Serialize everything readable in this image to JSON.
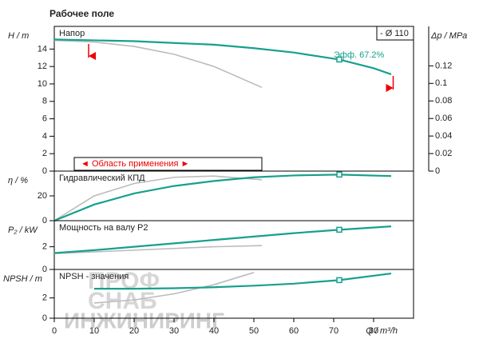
{
  "title": "Рабочее поле",
  "watermark": [
    "ПРОФ",
    "СНАБ",
    "ИНЖИНИРИНГ"
  ],
  "x_label": "Q / m³/h",
  "duty_point": 71.4,
  "chart_data": [
    {
      "type": "line",
      "ylabel": "H / m",
      "panel_title": "Напор",
      "y2label": "Δp / MPa",
      "diameter_label": "- Ø 110",
      "efficiency_label": "Эфф.  67.2%",
      "range_label": "◄ Область применения ►",
      "application_range": [
        9,
        84.5
      ],
      "xlim": [
        0,
        90
      ],
      "ylim": [
        0,
        16.6
      ],
      "yticks": [
        0,
        2,
        4,
        6,
        8,
        10,
        12,
        14
      ],
      "y2lim": [
        0,
        0.165
      ],
      "y2ticks": [
        0,
        0.02,
        0.04,
        0.06,
        0.08,
        0.1,
        0.12
      ],
      "series": [
        {
          "color": "#bbbbbb",
          "x": [
            0,
            10,
            20,
            30,
            40,
            52
          ],
          "values": [
            15.0,
            14.8,
            14.3,
            13.4,
            12.0,
            9.6
          ]
        },
        {
          "color": "#17a08c",
          "x": [
            0,
            10,
            20,
            30,
            40,
            50,
            60,
            71.4,
            80,
            84.4
          ],
          "values": [
            15.1,
            15.0,
            14.9,
            14.7,
            14.5,
            14.1,
            13.6,
            12.8,
            11.8,
            11.1
          ]
        }
      ]
    },
    {
      "type": "line",
      "ylabel": "η / %",
      "panel_title": "Гидравлический КПД",
      "xlim": [
        0,
        90
      ],
      "ylim": [
        0,
        40
      ],
      "yticks": [
        0,
        20
      ],
      "series": [
        {
          "color": "#bbbbbb",
          "x": [
            0,
            10,
            20,
            30,
            40,
            52
          ],
          "values": [
            0,
            20,
            30,
            35,
            36,
            33
          ]
        },
        {
          "color": "#17a08c",
          "x": [
            0,
            10,
            20,
            30,
            40,
            50,
            60,
            71.4,
            84.4
          ],
          "values": [
            0,
            13,
            22,
            28,
            32,
            35,
            36.5,
            37.2,
            36
          ]
        }
      ]
    },
    {
      "type": "line",
      "ylabel": "P₂ / kW",
      "panel_title": "Мощность на валу P2",
      "xlim": [
        0,
        90
      ],
      "ylim": [
        0,
        4.3
      ],
      "yticks": [
        0,
        2
      ],
      "series": [
        {
          "color": "#bbbbbb",
          "x": [
            0,
            20,
            40,
            52
          ],
          "values": [
            1.4,
            1.7,
            2.0,
            2.1
          ]
        },
        {
          "color": "#17a08c",
          "x": [
            0,
            10,
            20,
            30,
            40,
            50,
            60,
            71.4,
            84.4
          ],
          "values": [
            1.45,
            1.7,
            2.0,
            2.3,
            2.6,
            2.9,
            3.2,
            3.5,
            3.8
          ]
        }
      ]
    },
    {
      "type": "line",
      "ylabel": "NPSH / m",
      "panel_title": "NPSH - значения",
      "xlim": [
        0,
        90
      ],
      "ylim": [
        0,
        4.8
      ],
      "yticks": [
        0,
        2
      ],
      "xticks": [
        0,
        10,
        20,
        30,
        40,
        50,
        60,
        70,
        80
      ],
      "series": [
        {
          "color": "#bbbbbb",
          "x": [
            10,
            20,
            30,
            40,
            50
          ],
          "values": [
            1.5,
            1.8,
            2.4,
            3.3,
            4.5
          ]
        },
        {
          "color": "#17a08c",
          "x": [
            10,
            20,
            30,
            40,
            50,
            60,
            71.4,
            84.4
          ],
          "values": [
            2.9,
            2.9,
            2.95,
            3.05,
            3.2,
            3.4,
            3.75,
            4.4
          ]
        }
      ]
    }
  ]
}
